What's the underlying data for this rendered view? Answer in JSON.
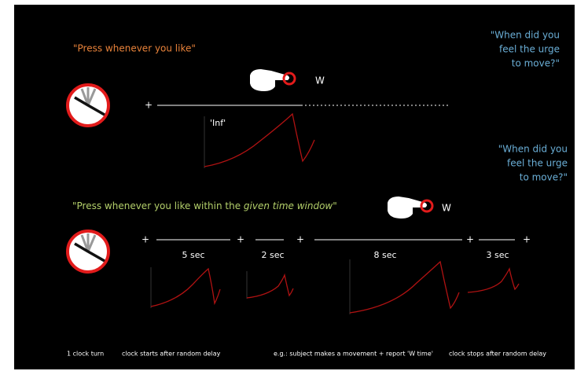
{
  "top_section": {
    "instruction": "\"Press whenever you like\"",
    "question_lines": [
      "\"When did you",
      "feel the urge",
      "to move?\""
    ],
    "response_key": "W",
    "marker": "+",
    "interval_label": "'Inf'"
  },
  "bottom_section": {
    "instruction_parts": [
      "\"Press whenever you like within the ",
      "given time window",
      "\""
    ],
    "question_lines": [
      "\"When did you",
      "feel the urge",
      "to move?\""
    ],
    "response_key": "W",
    "markers": [
      "+",
      "+",
      "+",
      "+",
      "+"
    ],
    "interval_labels": [
      "5 sec",
      "2 sec",
      "8 sec",
      "3 sec"
    ]
  },
  "footer_labels": [
    "1 clock turn",
    "clock starts after random delay",
    "e.g.: subject makes a movement + report 'W time'",
    "clock stops after random delay"
  ]
}
